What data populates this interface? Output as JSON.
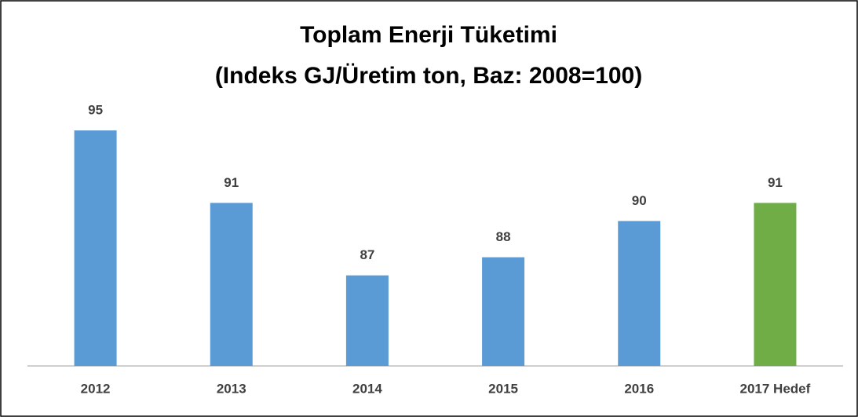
{
  "chart_data": {
    "type": "bar",
    "title": "Toplam Enerji Tüketimi",
    "subtitle": "(Indeks GJ/Üretim ton, Baz: 2008=100)",
    "categories": [
      "2012",
      "2013",
      "2014",
      "2015",
      "2016",
      "2017 Hedef"
    ],
    "values": [
      95,
      91,
      87,
      88,
      90,
      91
    ],
    "colors": [
      "#5b9bd5",
      "#5b9bd5",
      "#5b9bd5",
      "#5b9bd5",
      "#5b9bd5",
      "#70ad47"
    ],
    "ylim": [
      82,
      96
    ],
    "grid": false
  }
}
